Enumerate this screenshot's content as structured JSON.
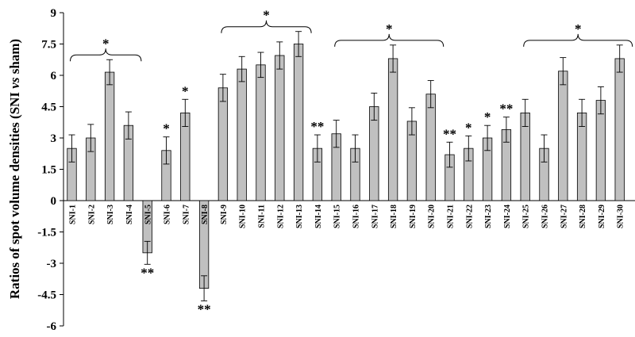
{
  "chart_data": {
    "type": "bar",
    "ylabel_parts": [
      "Ratios of spot volume densities (SNI ",
      "vs",
      " sham)"
    ],
    "ylim": [
      -6,
      9
    ],
    "yticks": [
      -6,
      -4.5,
      -3,
      -1.5,
      0,
      1.5,
      3,
      4.5,
      6,
      7.5,
      9
    ],
    "ytick_labels": [
      "-6",
      "-4.5",
      "-3",
      "-1.5",
      "0",
      "1.5",
      "3",
      "4.5",
      "6",
      "7.5",
      "9"
    ],
    "grid": false,
    "categories": [
      "SNI-1",
      "SNI-2",
      "SNI-3",
      "SNI-4",
      "SNI-5",
      "SNI-6",
      "SNI-7",
      "SNI-8",
      "SNI-9",
      "SNI-10",
      "SNI-11",
      "SNI-12",
      "SNI-13",
      "SNI-14",
      "SNI-15",
      "SNI-16",
      "SNI-17",
      "SNI-18",
      "SNI-19",
      "SNI-20",
      "SNI-21",
      "SNI-22",
      "SNI-23",
      "SNI-24",
      "SNI-25",
      "SNI-26",
      "SNI-27",
      "SNI-28",
      "SNI-29",
      "SNI-30"
    ],
    "values": [
      2.5,
      3.0,
      6.15,
      3.6,
      -2.5,
      2.4,
      4.2,
      -4.2,
      5.4,
      6.3,
      6.5,
      6.95,
      7.5,
      2.5,
      3.2,
      2.5,
      4.5,
      6.8,
      3.8,
      5.1,
      2.2,
      2.5,
      3.0,
      3.4,
      4.2,
      2.5,
      6.2,
      4.2,
      4.8,
      6.8
    ],
    "errors": [
      0.65,
      0.65,
      0.6,
      0.65,
      0.55,
      0.65,
      0.65,
      0.6,
      0.65,
      0.6,
      0.6,
      0.65,
      0.6,
      0.65,
      0.65,
      0.65,
      0.65,
      0.65,
      0.65,
      0.65,
      0.6,
      0.6,
      0.6,
      0.6,
      0.65,
      0.65,
      0.65,
      0.65,
      0.65,
      0.65
    ],
    "bar_color": "#c0c0c0",
    "annotations": [
      {
        "index": 5,
        "text": "*"
      },
      {
        "index": 6,
        "text": "*"
      },
      {
        "index": 13,
        "text": "**"
      },
      {
        "index": 20,
        "text": "**"
      },
      {
        "index": 21,
        "text": "*"
      },
      {
        "index": 22,
        "text": "*"
      },
      {
        "index": 23,
        "text": "**"
      },
      {
        "index": 4,
        "text": "**"
      },
      {
        "index": 7,
        "text": "**"
      }
    ],
    "brackets": [
      {
        "from": 0,
        "to": 3,
        "text": "*"
      },
      {
        "from": 8,
        "to": 12,
        "text": "*"
      },
      {
        "from": 14,
        "to": 19,
        "text": "*"
      },
      {
        "from": 24,
        "to": 29,
        "text": "*"
      }
    ]
  }
}
